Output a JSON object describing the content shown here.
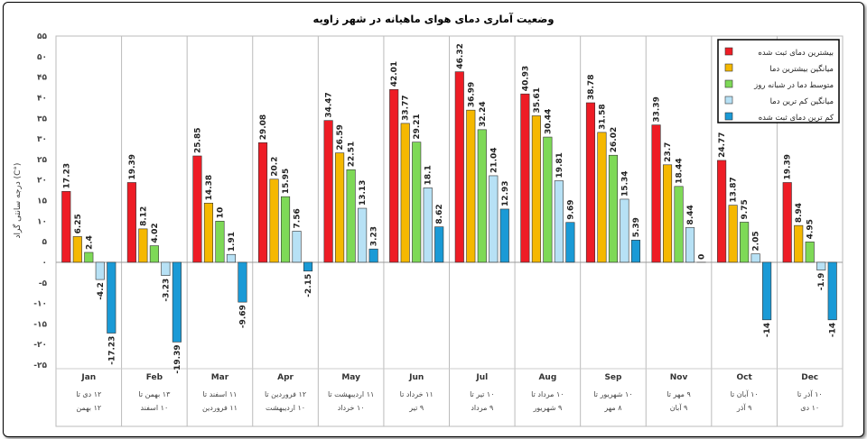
{
  "chart_data": {
    "type": "bar",
    "title": "وضعیت آماری دمای هوای ماهیانه در شهر زاویه",
    "ylabel": "درجه سانتی گراد (C°)",
    "ylim": [
      -25,
      55
    ],
    "yticks": [
      {
        "v": 55,
        "label": "۵۵"
      },
      {
        "v": 50,
        "label": "۵۰"
      },
      {
        "v": 45,
        "label": "۴۵"
      },
      {
        "v": 40,
        "label": "۴۰"
      },
      {
        "v": 35,
        "label": "۳۵"
      },
      {
        "v": 30,
        "label": "۳۰"
      },
      {
        "v": 25,
        "label": "۲۵"
      },
      {
        "v": 20,
        "label": "۲۰"
      },
      {
        "v": 15,
        "label": "۱۵"
      },
      {
        "v": 10,
        "label": "۱۰"
      },
      {
        "v": 5,
        "label": "۵"
      },
      {
        "v": 0,
        "label": "۰"
      },
      {
        "v": -5,
        "label": "-۵"
      },
      {
        "v": -10,
        "label": "-۱۰"
      },
      {
        "v": -15,
        "label": "-۱۵"
      },
      {
        "v": -20,
        "label": "-۲۰"
      },
      {
        "v": -25,
        "label": "-۲۵"
      }
    ],
    "categories": [
      "Jan",
      "Feb",
      "Mar",
      "Apr",
      "May",
      "Jun",
      "Jul",
      "Aug",
      "Sep",
      "Nov",
      "Oct",
      "Dec"
    ],
    "category_ranges": [
      [
        "۱۲ دی تا",
        "۱۲ بهمن"
      ],
      [
        "۱۳ بهمن تا",
        "۱۰ اسفند"
      ],
      [
        "۱۱ اسفند تا",
        "۱۱ فروردین"
      ],
      [
        "۱۲ فروردین تا",
        "۱۰ اردیبهشت"
      ],
      [
        "۱۱ اردیبهشت تا",
        "۱۰ خرداد"
      ],
      [
        "۱۱ خرداد تا",
        "۹ تیر"
      ],
      [
        "۱۰ تیر تا",
        "۹ مرداد"
      ],
      [
        "۱۰ مرداد تا",
        "۹ شهریور"
      ],
      [
        "۱۰ شهریور تا",
        "۸ مهر"
      ],
      [
        "۹ مهر تا",
        "۹ آبان"
      ],
      [
        "۱۰ آبان تا",
        "۹ آذر"
      ],
      [
        "۱۰ آذر تا",
        "۱۰ دی"
      ]
    ],
    "series": [
      {
        "name": "بیشترین دمای ثبت شده",
        "color": "#ee1c25",
        "values": [
          17.23,
          19.39,
          25.85,
          29.08,
          34.47,
          42.01,
          46.32,
          40.93,
          38.78,
          33.39,
          24.77,
          19.39
        ]
      },
      {
        "name": "میانگین بیشترین دما",
        "color": "#f5b800",
        "values": [
          6.25,
          8.12,
          14.38,
          20.2,
          26.59,
          33.77,
          36.99,
          35.61,
          31.58,
          23.7,
          13.87,
          8.94
        ]
      },
      {
        "name": "متوسط دما در شبانه روز",
        "color": "#7ed957",
        "values": [
          2.4,
          4.02,
          10,
          15.95,
          22.51,
          29.21,
          32.24,
          30.44,
          26.02,
          18.44,
          9.75,
          4.95
        ]
      },
      {
        "name": "میانگین کم ترین دما",
        "color": "#b7e1f5",
        "values": [
          -4.2,
          -3.23,
          1.91,
          7.56,
          13.13,
          18.1,
          21.04,
          19.81,
          15.34,
          8.44,
          2.05,
          -1.9
        ]
      },
      {
        "name": "کم ترین دمای ثبت شده",
        "color": "#1a9ad6",
        "values": [
          -17.23,
          -19.39,
          -9.69,
          -2.15,
          3.23,
          8.62,
          12.93,
          9.69,
          5.39,
          0,
          -14,
          -14
        ]
      }
    ],
    "legend_position": "top-right",
    "grid": false
  }
}
